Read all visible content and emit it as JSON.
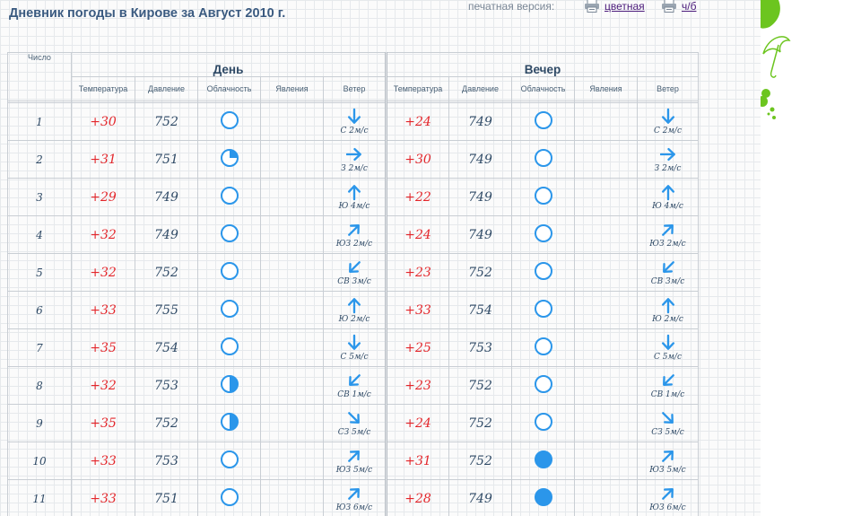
{
  "page": {
    "title": "Дневник погоды в Кирове за Август 2010 г.",
    "print_label": "печатная версия:",
    "print_color": "цветная",
    "print_bw": "ч/б"
  },
  "colors": {
    "title": "#3a5a80",
    "temperature": "#e3262b",
    "icon_blue": "#2b96ea",
    "accent_green": "#7ed321"
  },
  "table": {
    "date_header": "Число",
    "day_header": "День",
    "evening_header": "Вечер",
    "col_headers": [
      "Температура",
      "Давление",
      "Облачность",
      "Явления",
      "Ветер"
    ],
    "rows": [
      {
        "date": "1",
        "day": {
          "temp": "+30",
          "pressure": "752",
          "cloud": "clear",
          "phenomena": "",
          "wind_dir": "down",
          "wind_text": "С 2м/с"
        },
        "evening": {
          "temp": "+24",
          "pressure": "749",
          "cloud": "clear",
          "phenomena": "",
          "wind_dir": "down",
          "wind_text": "С 2м/с"
        }
      },
      {
        "date": "2",
        "day": {
          "temp": "+31",
          "pressure": "751",
          "cloud": "quarter",
          "phenomena": "",
          "wind_dir": "right",
          "wind_text": "З 2м/с"
        },
        "evening": {
          "temp": "+30",
          "pressure": "749",
          "cloud": "clear",
          "phenomena": "",
          "wind_dir": "right",
          "wind_text": "З 2м/с"
        }
      },
      {
        "date": "3",
        "day": {
          "temp": "+29",
          "pressure": "749",
          "cloud": "clear",
          "phenomena": "",
          "wind_dir": "up",
          "wind_text": "Ю 4м/с"
        },
        "evening": {
          "temp": "+22",
          "pressure": "749",
          "cloud": "clear",
          "phenomena": "",
          "wind_dir": "up",
          "wind_text": "Ю 4м/с"
        }
      },
      {
        "date": "4",
        "day": {
          "temp": "+32",
          "pressure": "749",
          "cloud": "clear",
          "phenomena": "",
          "wind_dir": "up-right",
          "wind_text": "ЮЗ 2м/с"
        },
        "evening": {
          "temp": "+24",
          "pressure": "749",
          "cloud": "clear",
          "phenomena": "",
          "wind_dir": "up-right",
          "wind_text": "ЮЗ 2м/с"
        }
      },
      {
        "date": "5",
        "day": {
          "temp": "+32",
          "pressure": "752",
          "cloud": "clear",
          "phenomena": "",
          "wind_dir": "down-left",
          "wind_text": "СВ 3м/с"
        },
        "evening": {
          "temp": "+23",
          "pressure": "752",
          "cloud": "clear",
          "phenomena": "",
          "wind_dir": "down-left",
          "wind_text": "СВ 3м/с"
        }
      },
      {
        "date": "6",
        "day": {
          "temp": "+33",
          "pressure": "755",
          "cloud": "clear",
          "phenomena": "",
          "wind_dir": "up",
          "wind_text": "Ю 2м/с"
        },
        "evening": {
          "temp": "+33",
          "pressure": "754",
          "cloud": "clear",
          "phenomena": "",
          "wind_dir": "up",
          "wind_text": "Ю 2м/с"
        }
      },
      {
        "date": "7",
        "day": {
          "temp": "+35",
          "pressure": "754",
          "cloud": "clear",
          "phenomena": "",
          "wind_dir": "down",
          "wind_text": "С 5м/с"
        },
        "evening": {
          "temp": "+25",
          "pressure": "753",
          "cloud": "clear",
          "phenomena": "",
          "wind_dir": "down",
          "wind_text": "С 5м/с"
        }
      },
      {
        "date": "8",
        "day": {
          "temp": "+32",
          "pressure": "753",
          "cloud": "half",
          "phenomena": "",
          "wind_dir": "down-left",
          "wind_text": "СВ 1м/с"
        },
        "evening": {
          "temp": "+23",
          "pressure": "752",
          "cloud": "clear",
          "phenomena": "",
          "wind_dir": "down-left",
          "wind_text": "СВ 1м/с"
        }
      },
      {
        "date": "9",
        "day": {
          "temp": "+35",
          "pressure": "752",
          "cloud": "half",
          "phenomena": "",
          "wind_dir": "down-right",
          "wind_text": "СЗ 5м/с"
        },
        "evening": {
          "temp": "+24",
          "pressure": "752",
          "cloud": "clear",
          "phenomena": "",
          "wind_dir": "down-right",
          "wind_text": "СЗ 5м/с"
        }
      },
      {
        "date": "10",
        "day": {
          "temp": "+33",
          "pressure": "753",
          "cloud": "clear",
          "phenomena": "",
          "wind_dir": "up-right",
          "wind_text": "ЮЗ 5м/с"
        },
        "evening": {
          "temp": "+31",
          "pressure": "752",
          "cloud": "overcast",
          "phenomena": "",
          "wind_dir": "up-right",
          "wind_text": "ЮЗ 5м/с"
        }
      },
      {
        "date": "11",
        "day": {
          "temp": "+33",
          "pressure": "751",
          "cloud": "clear",
          "phenomena": "",
          "wind_dir": "up-right",
          "wind_text": "ЮЗ 6м/с"
        },
        "evening": {
          "temp": "+28",
          "pressure": "749",
          "cloud": "overcast",
          "phenomena": "",
          "wind_dir": "up-right",
          "wind_text": "ЮЗ 6м/с"
        }
      }
    ]
  }
}
